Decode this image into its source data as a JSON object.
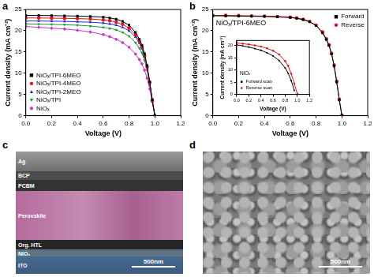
{
  "chart_data": [
    {
      "type": "line",
      "title": "a",
      "x_label": "Voltage (V)",
      "y_label": "Current density (mA cm⁻²)",
      "x": [
        0,
        0.1,
        0.2,
        0.3,
        0.4,
        0.5,
        0.6,
        0.65,
        0.7,
        0.75,
        0.8,
        0.85,
        0.88,
        0.9,
        0.92,
        0.94,
        0.96,
        0.98,
        1.0
      ],
      "series": [
        {
          "name": "NiOₓ/TPI-6MEO",
          "color": "#000000",
          "marker": "square",
          "values": [
            23.6,
            23.6,
            23.55,
            23.5,
            23.45,
            23.35,
            23.2,
            23.0,
            22.7,
            22.2,
            21.3,
            19.6,
            18.0,
            16.6,
            14.6,
            11.8,
            8.0,
            3.8,
            0.0
          ]
        },
        {
          "name": "NiOₓ/TPI-4MEO",
          "color": "#e8141b",
          "marker": "circle",
          "values": [
            23.0,
            23.0,
            22.95,
            22.9,
            22.85,
            22.75,
            22.55,
            22.35,
            22.0,
            21.5,
            20.6,
            19.0,
            17.5,
            16.2,
            14.2,
            11.5,
            7.8,
            3.6,
            0.0
          ]
        },
        {
          "name": "NiOₓ/TPI-2MEO",
          "color": "#1f2bd6",
          "marker": "triangle",
          "values": [
            22.3,
            22.3,
            22.25,
            22.2,
            22.1,
            22.0,
            21.8,
            21.6,
            21.3,
            20.8,
            20.0,
            18.5,
            17.1,
            15.8,
            13.9,
            11.3,
            7.6,
            3.4,
            0.0
          ]
        },
        {
          "name": "NiOₓ/TPI",
          "color": "#1a9a3a",
          "marker": "triangle_down",
          "values": [
            21.6,
            21.55,
            21.5,
            21.4,
            21.3,
            21.1,
            20.8,
            20.55,
            20.2,
            19.6,
            18.7,
            17.2,
            15.9,
            14.8,
            13.0,
            10.7,
            7.3,
            3.4,
            0.0
          ]
        },
        {
          "name": "NiOₓ",
          "color": "#cc33cc",
          "marker": "diamond",
          "values": [
            21.0,
            20.8,
            20.6,
            20.4,
            20.1,
            19.7,
            19.1,
            18.6,
            18.0,
            17.2,
            16.1,
            14.5,
            13.2,
            12.2,
            10.7,
            8.8,
            6.3,
            3.3,
            0.0
          ]
        }
      ],
      "xlim": [
        0,
        1.2
      ],
      "xticks": [
        {
          "value": 0,
          "label": "0.0"
        },
        {
          "value": 0.2,
          "label": "0.2"
        },
        {
          "value": 0.4,
          "label": "0.4"
        },
        {
          "value": 0.6,
          "label": "0.6"
        },
        {
          "value": 0.8,
          "label": "0.8"
        },
        {
          "value": 1.0,
          "label": "1.0"
        },
        {
          "value": 1.2,
          "label": "1.2"
        }
      ],
      "ylim": [
        0,
        25
      ],
      "yticks": [
        0,
        5,
        10,
        15,
        20,
        25
      ],
      "grid": false,
      "legend": "lower left"
    },
    {
      "type": "line",
      "title": "b",
      "x_label": "Voltage (V)",
      "y_label": "Current density (mA cm⁻²)",
      "annotations": [
        "NiOₓ/TPI-6MEO"
      ],
      "x": [
        0,
        0.1,
        0.2,
        0.3,
        0.4,
        0.5,
        0.6,
        0.65,
        0.7,
        0.75,
        0.8,
        0.85,
        0.88,
        0.9,
        0.92,
        0.94,
        0.96,
        0.98,
        1.0
      ],
      "series": [
        {
          "name": "Forward",
          "color": "#000000",
          "marker": "square",
          "values": [
            23.5,
            23.5,
            23.45,
            23.4,
            23.35,
            23.25,
            23.1,
            22.9,
            22.6,
            22.1,
            21.2,
            19.5,
            17.9,
            16.5,
            14.5,
            11.7,
            7.9,
            3.7,
            0.0
          ]
        },
        {
          "name": "Reverse",
          "color": "#e8141b",
          "marker": "circle",
          "values": [
            23.6,
            23.6,
            23.55,
            23.5,
            23.45,
            23.35,
            23.2,
            23.0,
            22.7,
            22.2,
            21.3,
            19.7,
            18.1,
            16.7,
            14.7,
            11.9,
            8.1,
            3.9,
            0.1
          ]
        }
      ],
      "xlim": [
        0,
        1.2
      ],
      "xticks": [
        {
          "value": 0,
          "label": "0.0"
        },
        {
          "value": 0.2,
          "label": "0.2"
        },
        {
          "value": 0.4,
          "label": "0.4"
        },
        {
          "value": 0.6,
          "label": "0.6"
        },
        {
          "value": 0.8,
          "label": "0.8"
        },
        {
          "value": 1.0,
          "label": "1.0"
        },
        {
          "value": 1.2,
          "label": "1.2"
        }
      ],
      "ylim": [
        0,
        25
      ],
      "yticks": [
        0,
        5,
        10,
        15,
        20,
        25
      ],
      "grid": false,
      "legend": "upper right"
    },
    {
      "type": "line",
      "x_label": "Voltage (V)",
      "y_label": "Current density (mA cm⁻²)",
      "annotations": [
        "NiOₓ"
      ],
      "x": [
        0,
        0.1,
        0.2,
        0.3,
        0.4,
        0.5,
        0.6,
        0.7,
        0.8,
        0.85,
        0.9,
        0.95,
        1.0
      ],
      "series": [
        {
          "name": "Forward scan",
          "color": "#000000",
          "marker": "square",
          "values": [
            20.2,
            19.8,
            19.3,
            18.7,
            18.0,
            17.0,
            15.7,
            13.8,
            10.8,
            8.6,
            5.6,
            1.6,
            null
          ]
        },
        {
          "name": "Reverse scan",
          "color": "#e8141b",
          "marker": "circle",
          "values": [
            21.0,
            20.7,
            20.4,
            20.0,
            19.5,
            18.8,
            17.8,
            16.3,
            13.6,
            11.6,
            8.4,
            4.4,
            0.2
          ]
        }
      ],
      "xlim": [
        0,
        1.2
      ],
      "xticks": [
        {
          "value": 0,
          "label": "0.0"
        },
        {
          "value": 0.2,
          "label": "0.2"
        },
        {
          "value": 0.4,
          "label": "0.4"
        },
        {
          "value": 0.6,
          "label": "0.6"
        },
        {
          "value": 0.8,
          "label": "0.8"
        },
        {
          "value": 1.0,
          "label": "1.0"
        },
        {
          "value": 1.2,
          "label": "1.2"
        }
      ],
      "ylim": [
        0,
        22
      ],
      "yticks": [
        0,
        5,
        10,
        15,
        20
      ],
      "grid": false,
      "legend": "lower left"
    }
  ],
  "images": [
    {
      "title": "c",
      "layers": [
        "Ag",
        "BCP",
        "PCBM",
        "Perovskite",
        "Org. HTL",
        "NiOₓ",
        "ITO"
      ],
      "scale_bar": "500nm"
    },
    {
      "title": "d",
      "scale_bar": "500nm"
    }
  ]
}
